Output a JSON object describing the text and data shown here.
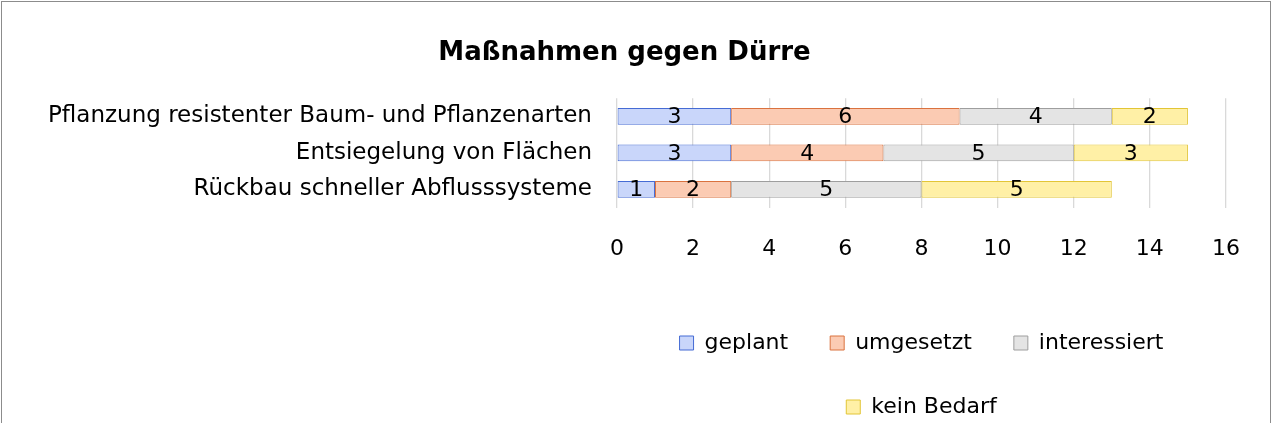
{
  "chart_data": {
    "type": "bar",
    "title": "Maßnahmen gegen Dürre",
    "orientation": "horizontal",
    "stacked": true,
    "categories": [
      "Pflanzung resistenter Baum- und Pflanzenarten",
      "Entsiegelung von Flächen",
      "Rückbau schneller Abflusssysteme"
    ],
    "series": [
      {
        "name": "geplant",
        "color": "#c9d6fa",
        "values": [
          3,
          3,
          1
        ]
      },
      {
        "name": "umgesetzt",
        "color": "#fbcbb3",
        "values": [
          6,
          4,
          2
        ]
      },
      {
        "name": "interessiert",
        "color": "#e4e4e4",
        "values": [
          4,
          5,
          5
        ]
      },
      {
        "name": "kein Bedarf",
        "color": "#fff0a6",
        "values": [
          2,
          3,
          5
        ]
      }
    ],
    "xlim": [
      0,
      16
    ],
    "xticks": [
      0,
      2,
      4,
      6,
      8,
      10,
      12,
      14,
      16
    ],
    "grid": "x",
    "legend": "bottom",
    "data_labels": true
  }
}
